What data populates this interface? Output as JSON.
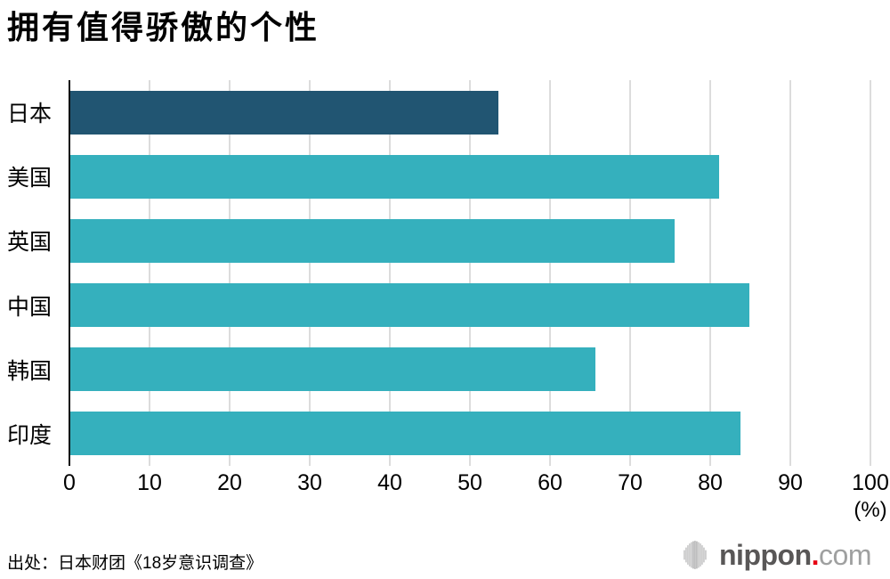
{
  "chart_data": {
    "type": "bar",
    "orientation": "horizontal",
    "title": "拥有值得骄傲的个性",
    "categories": [
      "日本",
      "美国",
      "英国",
      "中国",
      "韩国",
      "印度"
    ],
    "values": [
      53.5,
      81.1,
      75.5,
      84.9,
      65.7,
      83.8
    ],
    "xlim": [
      0,
      100
    ],
    "x_ticks": [
      0,
      10,
      20,
      30,
      40,
      50,
      60,
      70,
      80,
      90,
      100
    ],
    "unit_label": "(%)",
    "grid": true,
    "legend": "none",
    "highlight_index": 0,
    "colors": {
      "highlight_bar": "#215572",
      "bar": "#35b0bd",
      "gridline": "#dcdcdc",
      "axis": "#0d0d0d"
    }
  },
  "source_note": "出处：日本财团《18岁意识调查》",
  "logo": {
    "icon": "waveform-sphere-icon",
    "brand": "nippon",
    "dot": ".",
    "tld": "com",
    "brand_color": "#595757",
    "dot_color": "#e60012",
    "tld_color": "#9fa0a0"
  }
}
